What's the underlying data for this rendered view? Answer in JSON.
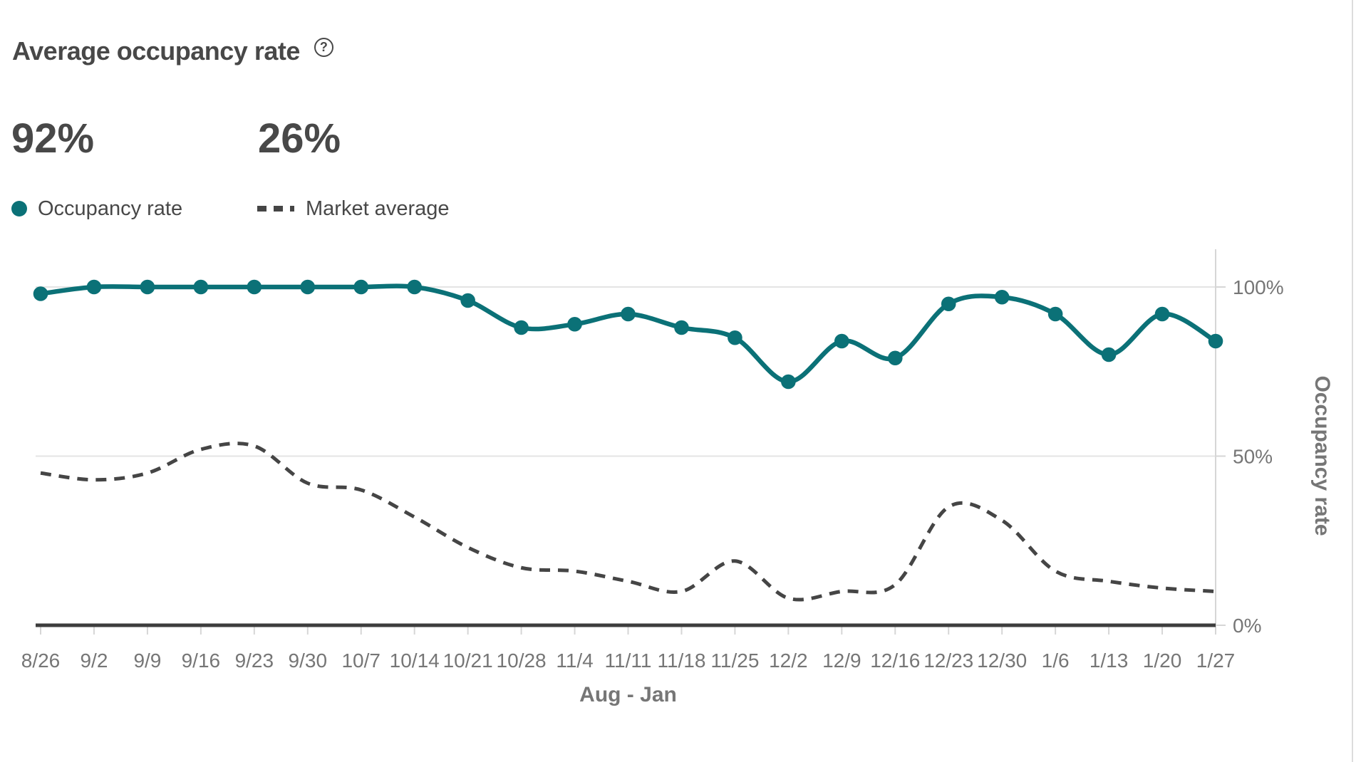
{
  "header": {
    "title": "Average occupancy rate",
    "help": "?"
  },
  "stats": {
    "occupancy_value": "92%",
    "market_value": "26%"
  },
  "legend": {
    "occupancy_label": "Occupancy rate",
    "market_label": "Market average"
  },
  "colors": {
    "occupancy": "#0b7177",
    "market": "#454545",
    "grid": "#e4e4e4",
    "axis": "#3d3d3d",
    "tick": "#d6d6d6",
    "label": "#767676",
    "text": "#484848"
  },
  "chart_data": {
    "type": "line",
    "title": "Average occupancy rate",
    "xlabel": "Aug - Jan",
    "ylabel": "Occupancy rate",
    "ylim": [
      0,
      100
    ],
    "grid": "horizontal",
    "legend_position": "top-left",
    "categories": [
      "8/26",
      "9/2",
      "9/9",
      "9/16",
      "9/23",
      "9/30",
      "10/7",
      "10/14",
      "10/21",
      "10/28",
      "11/4",
      "11/11",
      "11/18",
      "11/25",
      "12/2",
      "12/9",
      "12/16",
      "12/23",
      "12/30",
      "1/6",
      "1/13",
      "1/20",
      "1/27"
    ],
    "y_ticks": [
      {
        "value": 100,
        "label": "100%"
      },
      {
        "value": 50,
        "label": "50%"
      },
      {
        "value": 0,
        "label": "0%"
      }
    ],
    "series": [
      {
        "name": "Occupancy rate",
        "style": "solid-with-dots",
        "color": "#0b7177",
        "values": [
          98,
          100,
          100,
          100,
          100,
          100,
          100,
          100,
          96,
          88,
          89,
          92,
          88,
          85,
          72,
          84,
          79,
          95,
          97,
          92,
          80,
          92,
          84
        ]
      },
      {
        "name": "Market average",
        "style": "dashed",
        "color": "#454545",
        "values": [
          45,
          43,
          45,
          52,
          53,
          42,
          40,
          32,
          23,
          17,
          16,
          13,
          10,
          19,
          8,
          10,
          12,
          35,
          31,
          16,
          13,
          11,
          10
        ]
      }
    ]
  }
}
